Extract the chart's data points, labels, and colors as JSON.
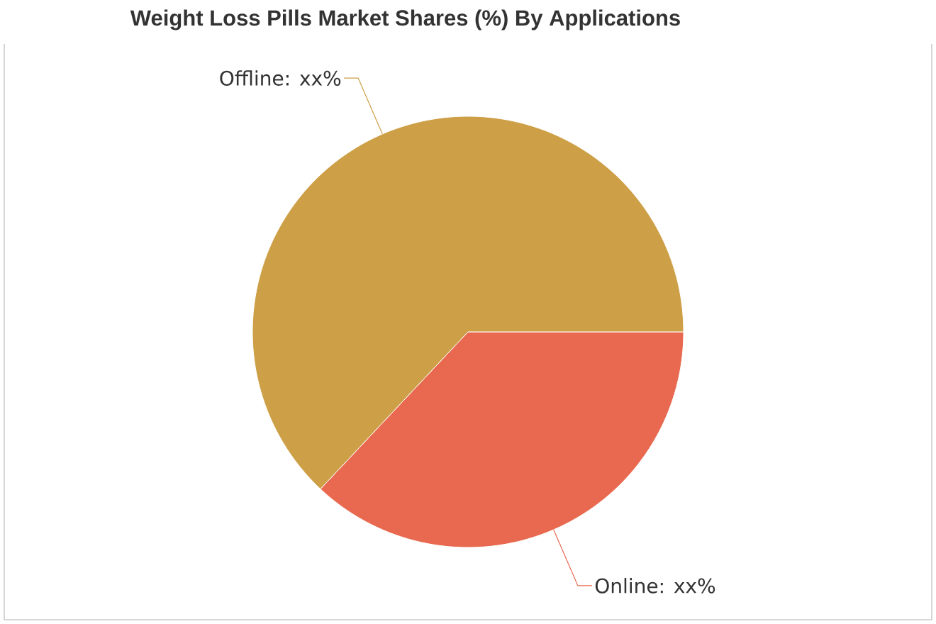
{
  "chart_data": {
    "type": "pie",
    "title": "Weight Loss Pills Market Shares (%) By Applications",
    "categories": [
      "Online: xx%",
      "Offline: xx%"
    ],
    "values": [
      37,
      63
    ],
    "colors": [
      "#e8694f",
      "#cd9f46"
    ]
  }
}
